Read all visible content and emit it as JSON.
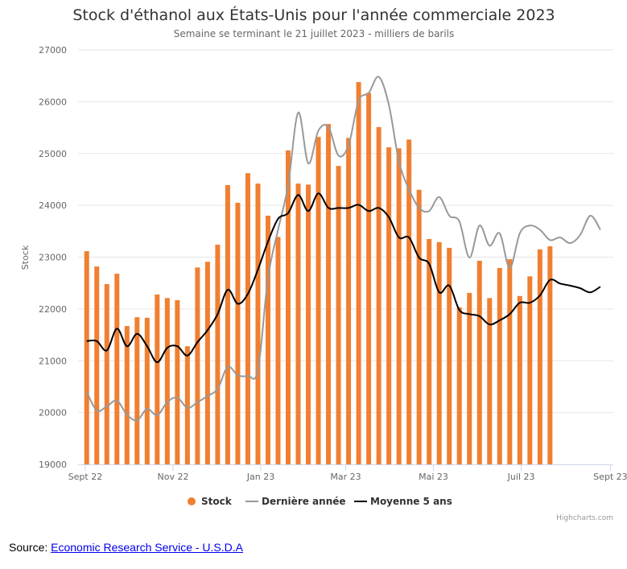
{
  "chart_data": {
    "type": "bar+line",
    "title": "Stock d'éthanol aux États-Unis pour l'année commerciale 2023",
    "subtitle": "Semaine se terminant le 21 juillet 2023 - milliers de barils",
    "ylabel": "Stock",
    "xlabel": "",
    "ylim": [
      19000,
      27000
    ],
    "yticks": [
      19000,
      20000,
      21000,
      22000,
      23000,
      24000,
      25000,
      26000,
      27000
    ],
    "xlim": [
      "2022-08-27",
      "2023-09-03"
    ],
    "xticks": [
      {
        "date": "2022-09-01",
        "label": "Sept 22"
      },
      {
        "date": "2022-11-01",
        "label": "Nov 22"
      },
      {
        "date": "2023-01-01",
        "label": "Jan 23"
      },
      {
        "date": "2023-03-01",
        "label": "Mar 23"
      },
      {
        "date": "2023-05-01",
        "label": "Mai 23"
      },
      {
        "date": "2023-07-01",
        "label": "Juil 23"
      },
      {
        "date": "2023-09-01",
        "label": "Sept 23"
      }
    ],
    "grid": true,
    "legend_position": "bottom",
    "first_week": "2022-09-02",
    "week_interval_days": 7,
    "series": [
      {
        "name": "Stock",
        "type": "bar",
        "color": "#f07f31",
        "values": [
          23115,
          22820,
          22480,
          22680,
          21670,
          21840,
          21830,
          22280,
          22210,
          22170,
          21280,
          22800,
          22910,
          23240,
          24390,
          24050,
          24620,
          24420,
          23800,
          23390,
          25060,
          24420,
          24400,
          25320,
          25570,
          24760,
          25300,
          26380,
          26170,
          25510,
          25120,
          25100,
          25270,
          24300,
          23350,
          23290,
          23180,
          22030,
          22310,
          22930,
          22210,
          22790,
          22960,
          22250,
          22630,
          23150,
          23210
        ]
      },
      {
        "name": "Dernière année",
        "type": "line",
        "color": "#999999",
        "values": [
          20400,
          20040,
          20120,
          20230,
          19960,
          19850,
          20070,
          19950,
          20200,
          20290,
          20090,
          20200,
          20320,
          20460,
          20880,
          20720,
          20710,
          20820,
          22600,
          23530,
          24390,
          25790,
          24810,
          25440,
          25510,
          24960,
          25160,
          26020,
          26170,
          26480,
          25940,
          24850,
          24310,
          23950,
          23890,
          24160,
          23800,
          23690,
          22990,
          23610,
          23220,
          23460,
          22790,
          23460,
          23610,
          23530,
          23330,
          23380,
          23270,
          23430,
          23800,
          23530
        ]
      },
      {
        "name": "Moyenne 5 ans",
        "type": "line",
        "color": "#000000",
        "values": [
          21380,
          21380,
          21200,
          21620,
          21280,
          21520,
          21280,
          20970,
          21250,
          21280,
          21100,
          21360,
          21590,
          21900,
          22370,
          22100,
          22290,
          22760,
          23300,
          23740,
          23850,
          24200,
          23890,
          24230,
          23950,
          23950,
          23950,
          24010,
          23890,
          23950,
          23770,
          23380,
          23380,
          22990,
          22870,
          22320,
          22450,
          21980,
          21900,
          21860,
          21700,
          21780,
          21900,
          22120,
          22120,
          22260,
          22560,
          22490,
          22450,
          22400,
          22320,
          22430
        ]
      }
    ]
  },
  "credits": "Highcharts.com",
  "source": {
    "prefix": "Source: ",
    "link_text": "Economic Research Service - U.S.D.A"
  }
}
